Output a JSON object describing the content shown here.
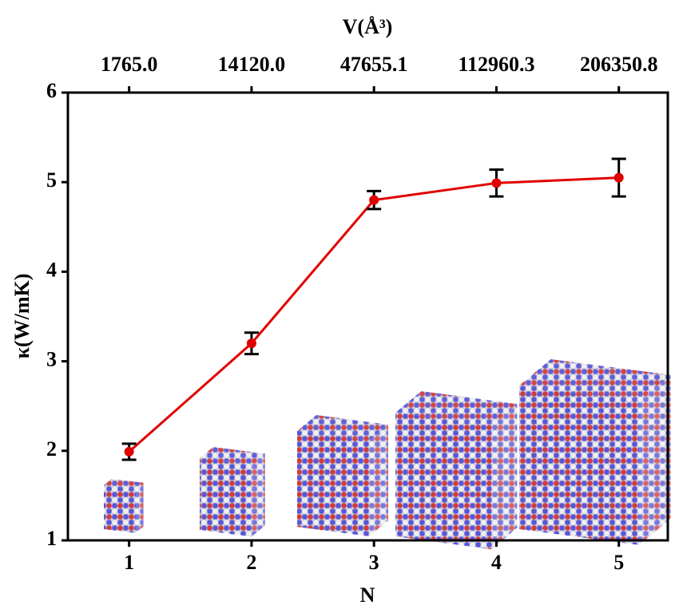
{
  "chart_data": {
    "type": "line",
    "x_label": "N",
    "y_label": "κ(W/mK)",
    "x2_label": "V(Å³)",
    "x": [
      1,
      2,
      3,
      4,
      5
    ],
    "x2labels": [
      "1765.0",
      "14120.0",
      "47655.1",
      "112960.3",
      "206350.8"
    ],
    "series": [
      {
        "color": "#e00000",
        "values": [
          1.99,
          3.2,
          4.8,
          4.99,
          5.05
        ],
        "errors": [
          0.09,
          0.12,
          0.1,
          0.15,
          0.21
        ]
      }
    ],
    "xlim": [
      0.5,
      5.4
    ],
    "ylim": [
      1,
      6
    ],
    "xticks": [
      1,
      2,
      3,
      4,
      5
    ],
    "yticks": [
      1,
      2,
      3,
      4,
      5,
      6
    ]
  }
}
